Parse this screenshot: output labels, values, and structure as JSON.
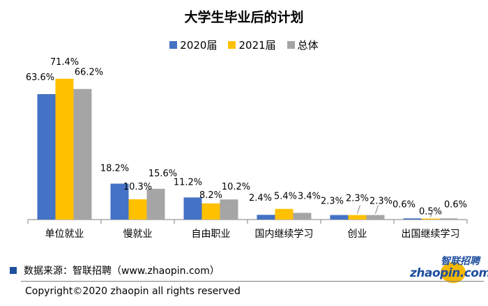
{
  "title": "大学生毕业后的计划",
  "legend": [
    {
      "name": "2020届",
      "color": "#4472C4"
    },
    {
      "name": "2021届",
      "color": "#FFC000"
    },
    {
      "name": "总体",
      "color": "#A5A5A5"
    }
  ],
  "chart_data": {
    "type": "bar",
    "title": "大学生毕业后的计划",
    "categories": [
      "单位就业",
      "慢就业",
      "自由职业",
      "国内继续学习",
      "创业",
      "出国继续学习"
    ],
    "series": [
      {
        "name": "2020届",
        "values": [
          63.6,
          18.2,
          11.2,
          2.4,
          2.3,
          0.6
        ],
        "labels": [
          "63.6%",
          "18.2%",
          "11.2%",
          "2.4%",
          "2.3%",
          "0.6%"
        ],
        "color": "#4472C4"
      },
      {
        "name": "2021届",
        "values": [
          71.4,
          10.3,
          8.2,
          5.4,
          2.3,
          0.5
        ],
        "labels": [
          "71.4%",
          "10.3%",
          "8.2%",
          "5.4%",
          "2.3%",
          "0.5%"
        ],
        "color": "#FFC000"
      },
      {
        "name": "总体",
        "values": [
          66.2,
          15.6,
          10.2,
          3.4,
          2.3,
          0.6
        ],
        "labels": [
          "66.2%",
          "15.6%",
          "10.2%",
          "3.4%",
          "2.3%",
          "0.6%"
        ],
        "color": "#A5A5A5"
      }
    ],
    "ylim": [
      0,
      80
    ],
    "grid": false,
    "legend_position": "top"
  },
  "source": "数据来源：智联招聘（www.zhaopin.com）",
  "copyright": "Copyright©2020 zhaopin all rights reserved",
  "logo": {
    "top": "智联招聘",
    "main": "zhaopin.com"
  }
}
